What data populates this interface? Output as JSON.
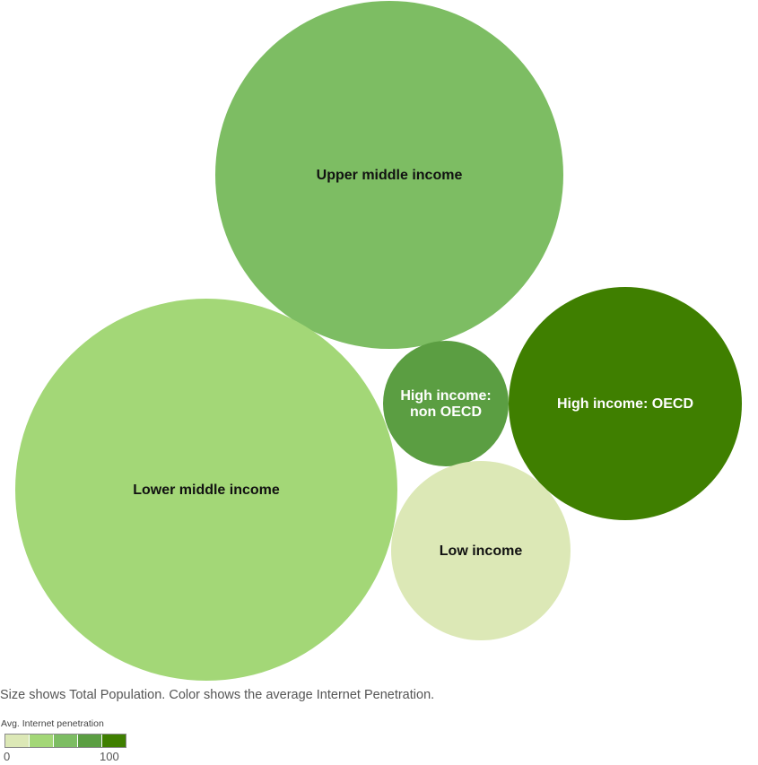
{
  "chart_data": {
    "type": "bubble",
    "size_measure": "Total Population",
    "color_measure": "Avg. Internet penetration",
    "bubbles": [
      {
        "label": "Upper middle income",
        "label_lines": [
          "Upper middle income"
        ],
        "color": "#7dbd63",
        "size_rank": 2,
        "text_color": "#111111"
      },
      {
        "label": "Lower middle income",
        "label_lines": [
          "Lower middle income"
        ],
        "color": "#a3d777",
        "size_rank": 1,
        "text_color": "#111111"
      },
      {
        "label": "High income: non OECD",
        "label_lines": [
          "High income:",
          "non OECD"
        ],
        "color": "#5b9e42",
        "size_rank": 5,
        "text_color": "#ffffff"
      },
      {
        "label": "High income: OECD",
        "label_lines": [
          "High income: OECD"
        ],
        "color": "#3f7f00",
        "size_rank": 3,
        "text_color": "#ffffff"
      },
      {
        "label": "Low income",
        "label_lines": [
          "Low income"
        ],
        "color": "#dce8b6",
        "size_rank": 4,
        "text_color": "#111111"
      }
    ],
    "legend": {
      "title": "Avg. Internet penetration",
      "min": "0",
      "max": "100",
      "colors": [
        "#dce8b6",
        "#a3d777",
        "#7dbd63",
        "#5b9e42",
        "#3f7f00"
      ]
    },
    "caption": "Size shows Total Population. Color shows the average Internet Penetration."
  }
}
